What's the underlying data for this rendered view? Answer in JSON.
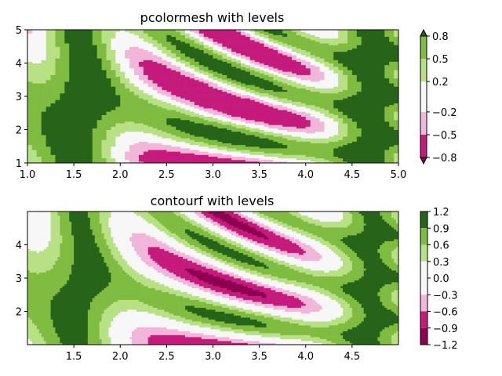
{
  "chart_data": [
    {
      "type": "heatmap",
      "title": "pcolormesh with levels",
      "xlabel": "",
      "ylabel": "",
      "xlim": [
        1.0,
        5.0
      ],
      "ylim": [
        1,
        5
      ],
      "xticks": [
        "1.0",
        "1.5",
        "2.0",
        "2.5",
        "3.0",
        "3.5",
        "4.0",
        "4.5",
        "5.0"
      ],
      "yticks": [
        "1",
        "2",
        "3",
        "4",
        "5"
      ],
      "colorbar": {
        "levels": [
          -0.8,
          -0.5,
          -0.2,
          0.2,
          0.5,
          0.8
        ],
        "tick_labels": [
          "0.8",
          "0.5",
          "0.2",
          "−0.2",
          "−0.5",
          "−0.8"
        ],
        "extend": "both"
      }
    },
    {
      "type": "heatmap",
      "title": "contourf with levels",
      "xlabel": "",
      "ylabel": "",
      "xlim": [
        1.0,
        5.0
      ],
      "ylim": [
        1.0,
        5.0
      ],
      "xticks": [
        "1.5",
        "2.0",
        "2.5",
        "3.0",
        "3.5",
        "4.0",
        "4.5"
      ],
      "yticks": [
        "2",
        "3",
        "4"
      ],
      "colorbar": {
        "levels": [
          -1.2,
          -0.9,
          -0.6,
          -0.3,
          0.0,
          0.3,
          0.6,
          0.9,
          1.2
        ],
        "tick_labels": [
          "1.2",
          "0.9",
          "0.6",
          "0.3",
          "0.0",
          "−0.3",
          "−0.6",
          "−0.9",
          "−1.2"
        ],
        "extend": "neither"
      }
    }
  ],
  "colors": {
    "neg_strong": "#8e0152",
    "neg_mid": "#c51b7d",
    "neg_low": "#de77ae",
    "neg_light": "#f1b6da",
    "neutral": "#f7f7f7",
    "pos_light": "#b8e186",
    "pos_low": "#b8e186",
    "pos_mid": "#7fbc41",
    "pos_strong": "#276419",
    "axis": "#000000"
  }
}
